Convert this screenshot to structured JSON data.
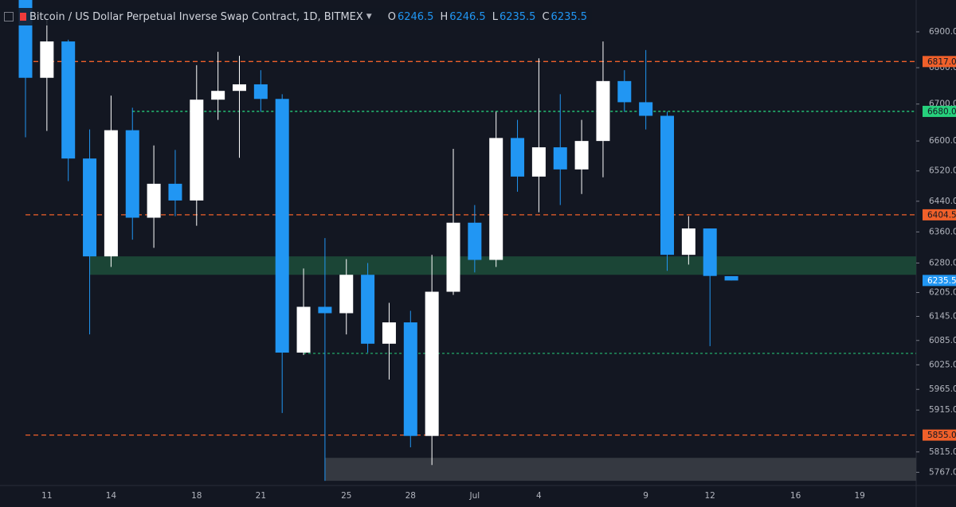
{
  "chart_data": {
    "type": "candlestick",
    "title": "Bitcoin / US Dollar Perpetual Inverse Swap Contract, 1D, BITMEX",
    "ohlc_labels": [
      "O",
      "H",
      "L",
      "C"
    ],
    "categories": [
      null,
      "11",
      null,
      null,
      "14",
      null,
      null,
      null,
      "18",
      null,
      null,
      "21",
      null,
      null,
      null,
      "25",
      null,
      null,
      "28",
      null,
      null,
      "Jul",
      null,
      null,
      "4",
      null,
      null,
      null,
      null,
      "9",
      null,
      null,
      "12",
      null,
      null,
      null,
      "16",
      null,
      null,
      "19"
    ],
    "open": [
      6995,
      6772,
      6873,
      6553,
      6297,
      6629,
      6397,
      6486,
      6442,
      6712,
      6736,
      6754,
      6714,
      6055,
      6169,
      6153,
      6250,
      6077,
      6130,
      5853,
      6207,
      6384,
      6288,
      6608,
      6505,
      6583,
      6524,
      6600,
      6763,
      6705,
      6668,
      6301,
      6369,
      6246.5,
      null,
      null,
      null,
      null,
      null,
      null
    ],
    "high": [
      6995,
      6934,
      6878,
      6631,
      6723,
      6690,
      6588,
      6576,
      6807,
      6844,
      6833,
      6793,
      6727,
      6266,
      6344,
      6290,
      6280,
      6179,
      6159,
      6301,
      6579,
      6430,
      6679,
      6657,
      6826,
      6727,
      6657,
      6873,
      6793,
      6849,
      6679,
      6401,
      6369,
      6246.5,
      null,
      null,
      null,
      null,
      null,
      null
    ],
    "low": [
      6610,
      6627,
      6493,
      6100,
      6270,
      6340,
      6319,
      6401,
      6376,
      6657,
      6555,
      6679,
      5908,
      6049,
      5747,
      6100,
      6055,
      5989,
      5826,
      5784,
      6199,
      6256,
      6270,
      6465,
      6411,
      6430,
      6459,
      6503,
      6679,
      6631,
      6260,
      6276,
      6071,
      6235.5,
      null,
      null,
      null,
      null,
      null,
      null
    ],
    "close": [
      6772,
      6873,
      6553,
      6297,
      6629,
      6397,
      6486,
      6442,
      6712,
      6736,
      6754,
      6714,
      6055,
      6169,
      6153,
      6250,
      6077,
      6130,
      5853,
      6207,
      6384,
      6288,
      6608,
      6505,
      6583,
      6524,
      6600,
      6763,
      6705,
      6668,
      6301,
      6369,
      6247,
      6235.5,
      null,
      null,
      null,
      null,
      null,
      null
    ],
    "up_color": "#ffffff",
    "down_color": "#2196f3",
    "log_scale": true,
    "ylim": [
      5736,
      6990
    ],
    "yticks": [
      {
        "value": 6900,
        "label": "6900.0"
      },
      {
        "value": 6800,
        "label": "6800.0"
      },
      {
        "value": 6700,
        "label": "6700.0"
      },
      {
        "value": 6600,
        "label": "6600.0"
      },
      {
        "value": 6520,
        "label": "6520.0"
      },
      {
        "value": 6440,
        "label": "6440.0"
      },
      {
        "value": 6360,
        "label": "6360.0"
      },
      {
        "value": 6280,
        "label": "6280.0"
      },
      {
        "value": 6205,
        "label": "6205.0"
      },
      {
        "value": 6145,
        "label": "6145.0"
      },
      {
        "value": 6085,
        "label": "6085.0"
      },
      {
        "value": 6025,
        "label": "6025.0"
      },
      {
        "value": 5965,
        "label": "5965.0"
      },
      {
        "value": 5915,
        "label": "5915.0"
      },
      {
        "value": 5815,
        "label": "5815.0"
      },
      {
        "value": 5767,
        "label": "5767.0"
      }
    ],
    "levels": [
      {
        "value": 6817,
        "label": "6817.0",
        "color": "#f0602a",
        "from": 0
      },
      {
        "value": 6680,
        "label": "6680.0",
        "color": "#26d07c",
        "from": 5
      },
      {
        "value": 6404.5,
        "label": "6404.5",
        "color": "#f0602a",
        "from": 0
      },
      {
        "value": 5855,
        "label": "5855.0",
        "color": "#f0602a",
        "from": 0
      },
      {
        "value": 6053,
        "color": "#26d07c",
        "from": 13
      }
    ],
    "zones": [
      {
        "low": 6250,
        "high": 6297,
        "color": "#1d4a38",
        "from": 3
      },
      {
        "low": 5747,
        "high": 5801,
        "color": "#3a3d45",
        "from": 14
      }
    ]
  }
}
